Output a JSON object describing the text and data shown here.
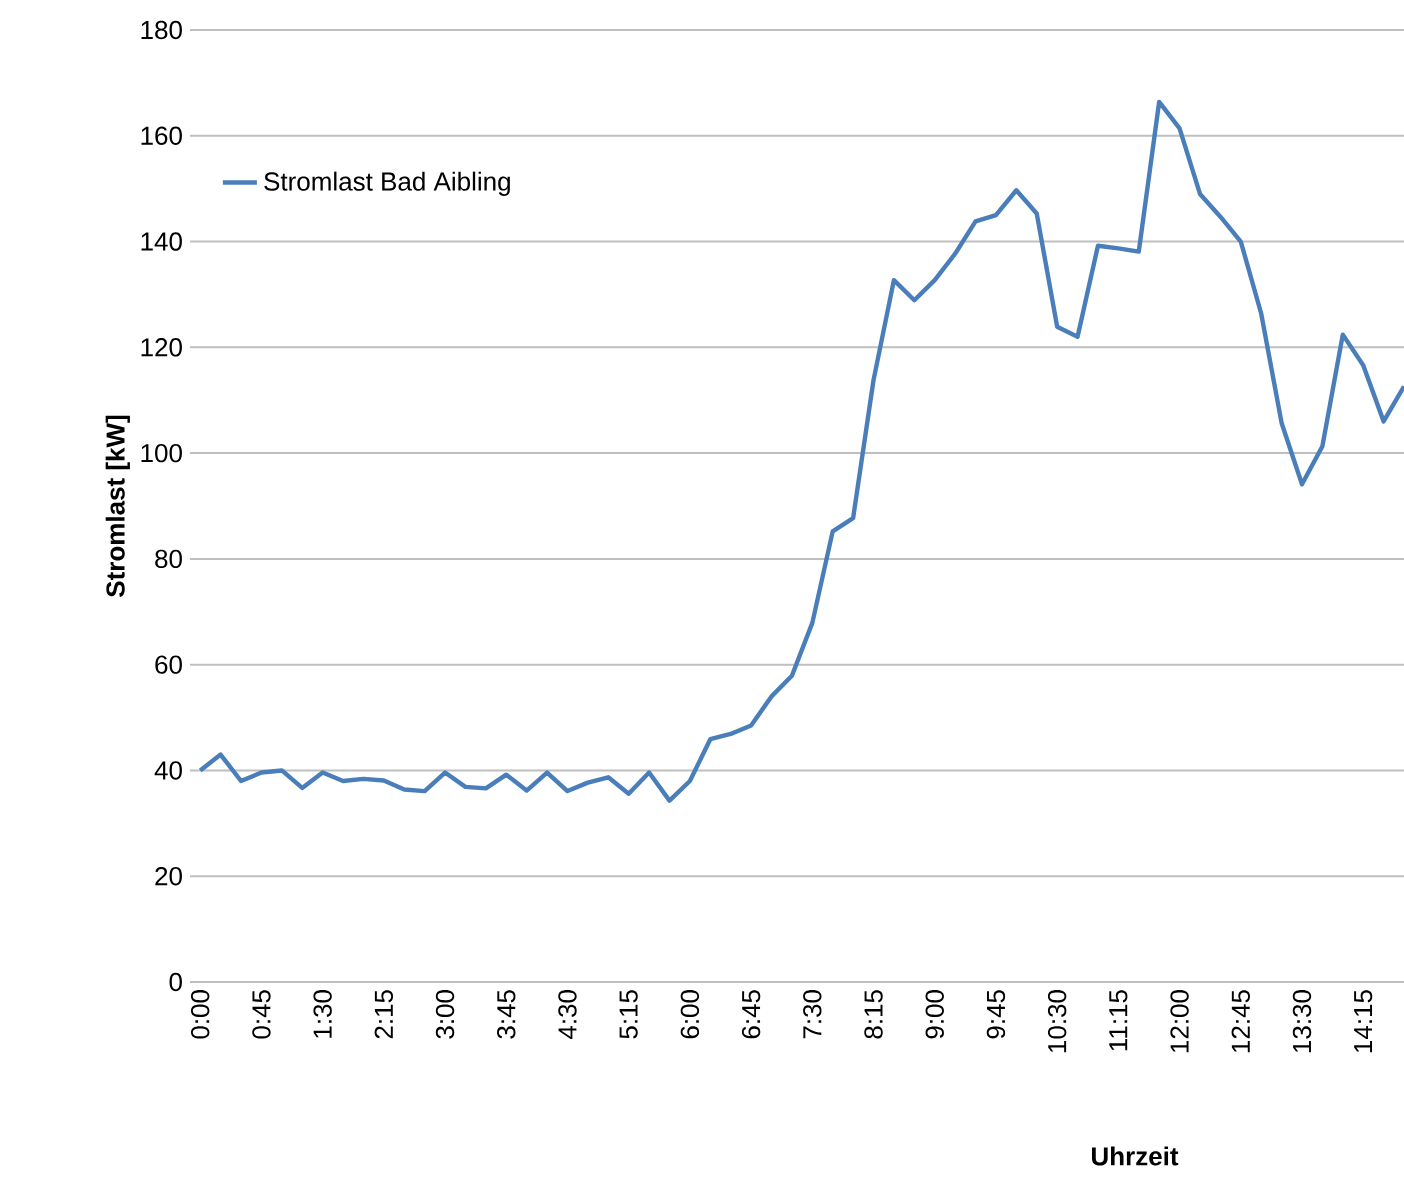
{
  "chart_data": {
    "type": "line",
    "xlabel": "Uhrzeit",
    "ylabel": "Stromlast [kW]",
    "x": [
      0,
      0.25,
      0.5,
      0.75,
      1,
      1.25,
      1.5,
      1.75,
      2,
      2.25,
      2.5,
      2.75,
      3,
      3.25,
      3.5,
      3.75,
      4,
      4.25,
      4.5,
      4.75,
      5,
      5.25,
      5.5,
      5.75,
      6,
      6.25,
      6.5,
      6.75,
      7,
      7.25,
      7.5,
      7.75,
      8,
      8.25,
      8.5,
      8.75,
      9,
      9.25,
      9.5,
      9.75,
      10,
      10.25,
      10.5,
      10.75,
      11,
      11.25,
      11.5,
      11.75,
      12,
      12.25,
      12.5,
      12.75,
      13,
      13.25,
      13.5,
      13.75,
      14,
      14.25,
      14.5,
      14.75
    ],
    "series": [
      {
        "name": "Stromlast Bad Aibling",
        "color": "#4a7ebb",
        "values": [
          40,
          43,
          38,
          39.6,
          40,
          36.7,
          39.6,
          38,
          38.4,
          38.1,
          36.4,
          36.1,
          39.6,
          36.9,
          36.6,
          39.2,
          36.2,
          39.6,
          36.1,
          37.7,
          38.7,
          35.6,
          39.6,
          34.3,
          38,
          45.9,
          46.9,
          48.5,
          54,
          57.9,
          67.9,
          85.2,
          87.7,
          113.8,
          132.7,
          128.9,
          132.7,
          137.7,
          143.8,
          145,
          149.7,
          145.3,
          123.9,
          122,
          139.2,
          138.7,
          138.1,
          166.4,
          161.4,
          149,
          144.7,
          140,
          126.4,
          105.7,
          94.1,
          101.3,
          122.4,
          116.6,
          106,
          112.6
        ]
      }
    ],
    "xlim": [
      -0.125,
      14.75
    ],
    "ylim": [
      0,
      180
    ],
    "xticks": [
      {
        "value": 0,
        "label": "0:00"
      },
      {
        "value": 0.75,
        "label": "0:45"
      },
      {
        "value": 1.5,
        "label": "1:30"
      },
      {
        "value": 2.25,
        "label": "2:15"
      },
      {
        "value": 3,
        "label": "3:00"
      },
      {
        "value": 3.75,
        "label": "3:45"
      },
      {
        "value": 4.5,
        "label": "4:30"
      },
      {
        "value": 5.25,
        "label": "5:15"
      },
      {
        "value": 6,
        "label": "6:00"
      },
      {
        "value": 6.75,
        "label": "6:45"
      },
      {
        "value": 7.5,
        "label": "7:30"
      },
      {
        "value": 8.25,
        "label": "8:15"
      },
      {
        "value": 9,
        "label": "9:00"
      },
      {
        "value": 9.75,
        "label": "9:45"
      },
      {
        "value": 10.5,
        "label": "10:30"
      },
      {
        "value": 11.25,
        "label": "11:15"
      },
      {
        "value": 12,
        "label": "12:00"
      },
      {
        "value": 12.75,
        "label": "12:45"
      },
      {
        "value": 13.5,
        "label": "13:30"
      },
      {
        "value": 14.25,
        "label": "14:15"
      }
    ],
    "yticks": [
      0,
      20,
      40,
      60,
      80,
      100,
      120,
      140,
      160,
      180
    ],
    "grid": "y",
    "legend": "top left",
    "marker": "none",
    "line_style": "solid"
  }
}
